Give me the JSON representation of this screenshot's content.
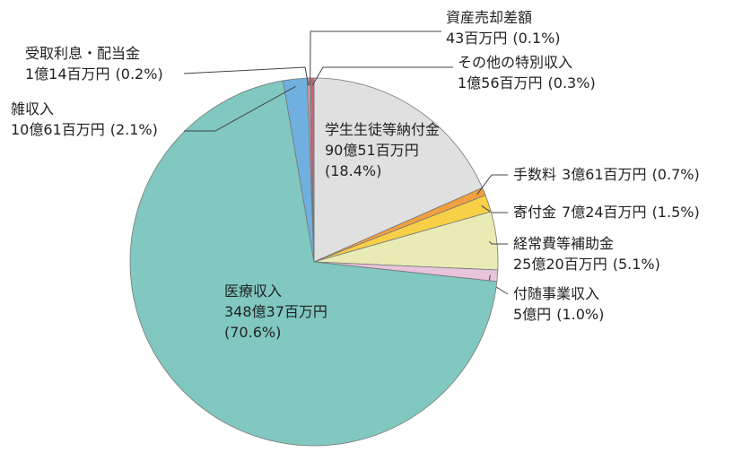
{
  "chart_data": {
    "type": "pie",
    "categories": [
      "学生生徒等納付金",
      "手数料",
      "寄付金",
      "経常費等補助金",
      "付随事業収入",
      "医療収入",
      "雑収入",
      "受取利息・配当金",
      "資産売却差額",
      "その他の特別収入"
    ],
    "amounts": [
      "90億51百万円",
      "3億61百万円",
      "7億24百万円",
      "25億20百万円",
      "5億円",
      "348億37百万円",
      "10億61百万円",
      "1億14百万円",
      "43百万円",
      "1億56百万円"
    ],
    "values": [
      18.4,
      0.7,
      1.5,
      5.1,
      1.0,
      70.6,
      2.1,
      0.2,
      0.1,
      0.3
    ],
    "value_labels": [
      "(18.4%)",
      "(0.7%)",
      "(1.5%)",
      "(5.1%)",
      "(1.0%)",
      "(70.6%)",
      "(2.1%)",
      "(0.2%)",
      "(0.1%)",
      "(0.3%)"
    ],
    "colors": [
      "#e0e0e0",
      "#f0a040",
      "#f8d048",
      "#e8ecb4",
      "#e8c4dc",
      "#80c8c0",
      "#70b0e0",
      "#e8a0a0",
      "#f0f0f0",
      "#d06080"
    ]
  }
}
